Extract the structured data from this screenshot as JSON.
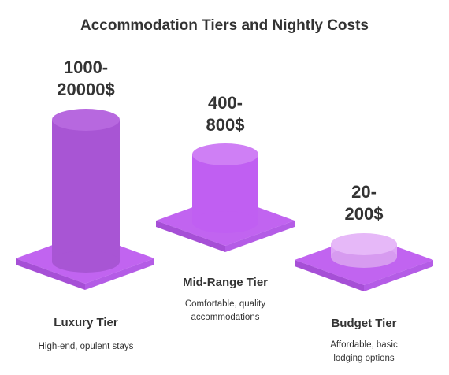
{
  "title": "Accommodation Tiers and Nightly Costs",
  "colors": {
    "platform_top": "#c164f0",
    "platform_side_left": "#a64fd6",
    "platform_side_right": "#b45ce6",
    "luxury_cylinder": "#a855d4",
    "midrange_cylinder": "#c05ff2",
    "budget_cylinder": "#dea6f5",
    "text": "#333333"
  },
  "tiers": [
    {
      "name": "Luxury Tier",
      "price": "1000-\n20000$",
      "description": "High-end, opulent stays"
    },
    {
      "name": "Mid-Range Tier",
      "price": "400-\n800$",
      "description": "Comfortable, quality\naccommodations"
    },
    {
      "name": "Budget Tier",
      "price": "20-\n200$",
      "description": "Affordable, basic\nlodging options"
    }
  ]
}
